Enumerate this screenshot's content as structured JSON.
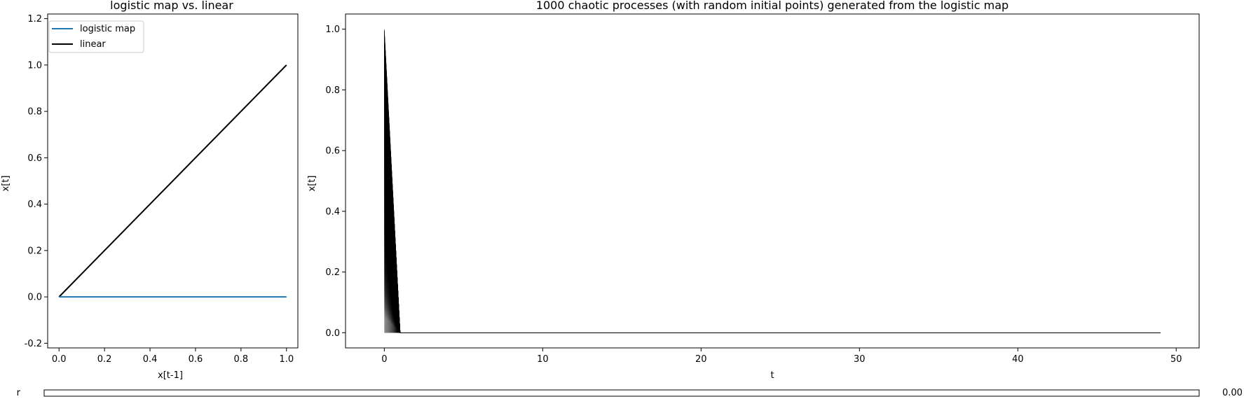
{
  "chart_data": [
    {
      "type": "line",
      "title": "logistic map vs. linear",
      "xlabel": "x[t-1]",
      "ylabel": "x[t]",
      "xlim": [
        -0.05,
        1.05
      ],
      "ylim": [
        -0.22,
        1.22
      ],
      "xticks": [
        "0.0",
        "0.2",
        "0.4",
        "0.6",
        "0.8",
        "1.0"
      ],
      "yticks": [
        "-0.2",
        "0.0",
        "0.2",
        "0.4",
        "0.6",
        "0.8",
        "1.0",
        "1.2"
      ],
      "legend_position": "upper-left",
      "series": [
        {
          "name": "logistic map",
          "color": "#1f77b4",
          "x": [
            0.0,
            1.0
          ],
          "y": [
            0.0,
            0.0
          ]
        },
        {
          "name": "linear",
          "color": "#000000",
          "x": [
            0.0,
            1.0
          ],
          "y": [
            0.0,
            1.0
          ]
        }
      ]
    },
    {
      "type": "line",
      "title": "1000 chaotic processes (with random initial points) generated from the logistic map",
      "xlabel": "t",
      "ylabel": "x[t]",
      "xlim": [
        -2.45,
        51.45
      ],
      "ylim": [
        -0.05,
        1.05
      ],
      "xticks": [
        "0",
        "10",
        "20",
        "30",
        "40",
        "50"
      ],
      "yticks": [
        "0.0",
        "0.2",
        "0.4",
        "0.6",
        "0.8",
        "1.0"
      ],
      "line_color": "#000000",
      "process_count": 1000,
      "t_range": [
        0,
        49
      ],
      "initial_value_range": [
        0.0,
        1.0
      ],
      "value_after_first_step": 0.0
    }
  ],
  "slider": {
    "label": "r",
    "value": "0.00",
    "fill_fraction": 0.0
  }
}
